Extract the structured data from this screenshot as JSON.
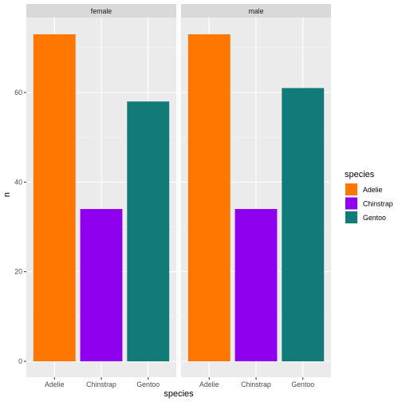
{
  "chart_data": {
    "type": "bar",
    "facet_variable": "sex",
    "panels": [
      {
        "label": "female",
        "categories": [
          "Adelie",
          "Chinstrap",
          "Gentoo"
        ],
        "values": [
          73,
          34,
          58
        ]
      },
      {
        "label": "male",
        "categories": [
          "Adelie",
          "Chinstrap",
          "Gentoo"
        ],
        "values": [
          73,
          34,
          61
        ]
      }
    ],
    "xlabel": "species",
    "ylabel": "n",
    "ylim": [
      0,
      76
    ],
    "yticks": [
      0,
      20,
      40,
      60
    ],
    "legend": {
      "title": "species",
      "position": "right",
      "entries": [
        {
          "label": "Adelie",
          "color": "#FF7700"
        },
        {
          "label": "Chinstrap",
          "color": "#8F00EF"
        },
        {
          "label": "Gentoo",
          "color": "#137B77"
        }
      ]
    },
    "grid": true,
    "colors": {
      "panel_background": "#EBEBEB",
      "strip_background": "#D9D9D9",
      "grid_major": "#FFFFFF",
      "grid_minor": "#F5F5F5",
      "text": "#4D4D4D",
      "title_text": "#000000"
    }
  }
}
